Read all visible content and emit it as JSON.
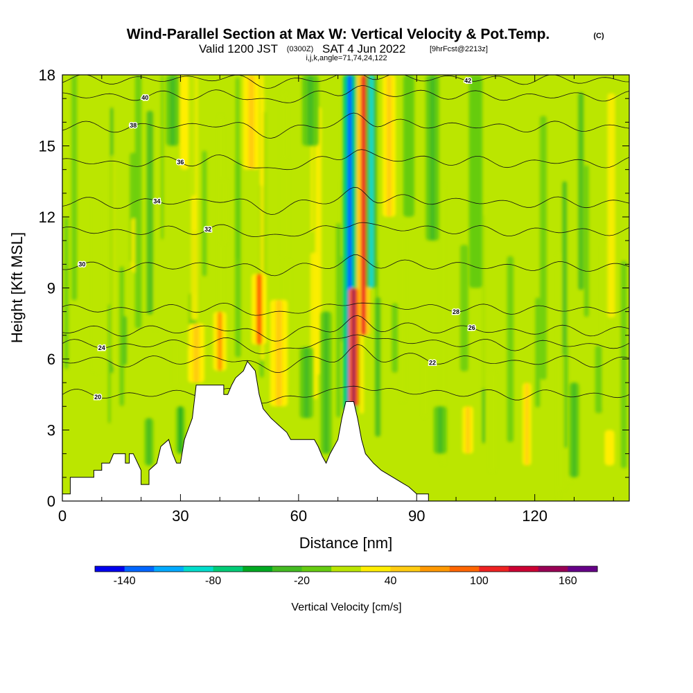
{
  "chart_data": {
    "type": "heatmap",
    "title": "Wind-Parallel Section at Max W: Vertical Velocity & Pot.Temp.",
    "title_mark": "(C)",
    "subtitle_main": "Valid 1200 JST",
    "subtitle_utc": "(0300Z)",
    "subtitle_date": "SAT 4 Jun 2022",
    "subtitle_fcst": "[9hrFcst@2213z]",
    "subtitle_indices": "i,j,k,angle=71,74,24,122",
    "xlabel": "Distance [nm]",
    "ylabel": "Height [Kft MSL]",
    "xlim": [
      0,
      144
    ],
    "ylim": [
      0,
      18
    ],
    "x_ticks": [
      {
        "value": 0,
        "label": "0"
      },
      {
        "value": 30,
        "label": "30"
      },
      {
        "value": 60,
        "label": "60"
      },
      {
        "value": 90,
        "label": "90"
      },
      {
        "value": 120,
        "label": "120"
      }
    ],
    "y_ticks": [
      {
        "value": 0,
        "label": "0"
      },
      {
        "value": 3,
        "label": "3"
      },
      {
        "value": 6,
        "label": "6"
      },
      {
        "value": 9,
        "label": "9"
      },
      {
        "value": 12,
        "label": "12"
      },
      {
        "value": 15,
        "label": "15"
      },
      {
        "value": 18,
        "label": "18"
      }
    ],
    "colorbar": {
      "label": "Vertical Velocity [cm/s]",
      "min": -160,
      "max": 180,
      "step": 20,
      "tick_labels": [
        {
          "value": -140,
          "label": "-140"
        },
        {
          "value": -80,
          "label": "-80"
        },
        {
          "value": -20,
          "label": "-20"
        },
        {
          "value": 40,
          "label": "40"
        },
        {
          "value": 100,
          "label": "100"
        },
        {
          "value": 160,
          "label": "160"
        }
      ],
      "colors": [
        "#0000ee",
        "#0066ff",
        "#00aaff",
        "#00ddcc",
        "#00cc77",
        "#00aa22",
        "#44bb22",
        "#66cc11",
        "#bbe600",
        "#ffee00",
        "#ffcc11",
        "#ff9900",
        "#ff6600",
        "#ee2222",
        "#cc0033",
        "#990055",
        "#660088"
      ]
    },
    "background_value": 0,
    "vertical_velocity_features": [
      {
        "x": 73,
        "width": 1.2,
        "y_bottom": 3.8,
        "y_top": 18,
        "value": -140
      },
      {
        "x": 76.5,
        "width": 1.2,
        "y_bottom": 7.0,
        "y_top": 18,
        "value": 110
      },
      {
        "x": 78.5,
        "width": 1.0,
        "y_bottom": 9.0,
        "y_top": 18,
        "value": -100
      },
      {
        "x": 74,
        "width": 0.9,
        "y_bottom": 4.0,
        "y_top": 9.0,
        "value": 150
      },
      {
        "x": 50,
        "width": 1.4,
        "y_bottom": 6.6,
        "y_top": 9.6,
        "value": 90
      },
      {
        "x": 40,
        "width": 1.2,
        "y_bottom": 5.5,
        "y_top": 8.0,
        "value": 70
      },
      {
        "x": 34,
        "width": 1.5,
        "y_bottom": 5.0,
        "y_top": 7.5,
        "value": 50
      },
      {
        "x": 55,
        "width": 1.6,
        "y_bottom": 4.0,
        "y_top": 8.5,
        "value": 40
      },
      {
        "x": 67,
        "width": 1.0,
        "y_bottom": 2.0,
        "y_top": 8.0,
        "value": -30
      },
      {
        "x": 62,
        "width": 1.2,
        "y_bottom": 3.5,
        "y_top": 6.5,
        "value": -40
      },
      {
        "x": 30,
        "width": 0.8,
        "y_bottom": 2.0,
        "y_top": 4.0,
        "value": -60
      },
      {
        "x": 31,
        "width": 0.8,
        "y_bottom": 14.0,
        "y_top": 18,
        "value": 30
      },
      {
        "x": 28,
        "width": 1.2,
        "y_bottom": 15.0,
        "y_top": 18,
        "value": -30
      },
      {
        "x": 48,
        "width": 1.5,
        "y_bottom": 14.0,
        "y_top": 18,
        "value": 40
      },
      {
        "x": 63,
        "width": 1.5,
        "y_bottom": 15.0,
        "y_top": 18,
        "value": -40
      },
      {
        "x": 83,
        "width": 1.2,
        "y_bottom": 12.0,
        "y_top": 18,
        "value": 40
      },
      {
        "x": 88,
        "width": 1.0,
        "y_bottom": 12.0,
        "y_top": 18,
        "value": -20
      },
      {
        "x": 94,
        "width": 1.2,
        "y_bottom": 11.0,
        "y_top": 18,
        "value": -30
      },
      {
        "x": 105,
        "width": 1.2,
        "y_bottom": 9.0,
        "y_top": 18,
        "value": -20
      },
      {
        "x": 118,
        "width": 0.8,
        "y_bottom": 1.5,
        "y_top": 5.0,
        "value": 40
      },
      {
        "x": 130,
        "width": 0.9,
        "y_bottom": 1.0,
        "y_top": 5.0,
        "value": -40
      },
      {
        "x": 103,
        "width": 1.0,
        "y_bottom": 2.0,
        "y_top": 4.0,
        "value": 40
      },
      {
        "x": 96,
        "width": 1.2,
        "y_bottom": 2.0,
        "y_top": 4.0,
        "value": -30
      },
      {
        "x": 22,
        "width": 0.8,
        "y_bottom": 1.5,
        "y_top": 3.5,
        "value": -30
      },
      {
        "x": 139,
        "width": 0.9,
        "y_bottom": 1.5,
        "y_top": 3.0,
        "value": 30
      }
    ],
    "terrain": [
      [
        0,
        0.3
      ],
      [
        2,
        0.3
      ],
      [
        2,
        1.0
      ],
      [
        8,
        1.0
      ],
      [
        8,
        1.3
      ],
      [
        10,
        1.3
      ],
      [
        10,
        1.6
      ],
      [
        12,
        1.6
      ],
      [
        13,
        2.0
      ],
      [
        16,
        2.0
      ],
      [
        16,
        1.6
      ],
      [
        17,
        1.6
      ],
      [
        17,
        2.0
      ],
      [
        18,
        2.0
      ],
      [
        20,
        1.3
      ],
      [
        20,
        0.7
      ],
      [
        22,
        0.7
      ],
      [
        22,
        1.3
      ],
      [
        24,
        1.6
      ],
      [
        25,
        2.3
      ],
      [
        27,
        2.6
      ],
      [
        28,
        2.0
      ],
      [
        29,
        1.6
      ],
      [
        30,
        1.6
      ],
      [
        31,
        2.6
      ],
      [
        33,
        3.5
      ],
      [
        34,
        4.9
      ],
      [
        41,
        4.9
      ],
      [
        41,
        4.5
      ],
      [
        42,
        4.5
      ],
      [
        43,
        4.9
      ],
      [
        44,
        5.2
      ],
      [
        46,
        5.5
      ],
      [
        47,
        5.9
      ],
      [
        49,
        5.5
      ],
      [
        50,
        4.5
      ],
      [
        51,
        3.9
      ],
      [
        53,
        3.5
      ],
      [
        55,
        3.2
      ],
      [
        57,
        2.9
      ],
      [
        58,
        2.6
      ],
      [
        64,
        2.6
      ],
      [
        65,
        2.3
      ],
      [
        66,
        1.9
      ],
      [
        67,
        1.6
      ],
      [
        68,
        2.0
      ],
      [
        70,
        2.6
      ],
      [
        71,
        3.5
      ],
      [
        72,
        4.2
      ],
      [
        74,
        4.2
      ],
      [
        75,
        3.5
      ],
      [
        76,
        2.6
      ],
      [
        77,
        2.0
      ],
      [
        79,
        1.6
      ],
      [
        81,
        1.3
      ],
      [
        84,
        1.0
      ],
      [
        86,
        0.8
      ],
      [
        88,
        0.6
      ],
      [
        90,
        0.3
      ],
      [
        93,
        0.3
      ],
      [
        93,
        0.0
      ],
      [
        144,
        0.0
      ]
    ],
    "theta_contours": [
      {
        "value": 20,
        "base": 4.5,
        "label_x": 9
      },
      {
        "value": 22,
        "base": 5.9,
        "label_x": 94
      },
      {
        "value": 24,
        "base": 6.6,
        "label_x": 10
      },
      {
        "value": 26,
        "base": 7.2,
        "label_x": 104
      },
      {
        "value": 28,
        "base": 8.1,
        "label_x": 100
      },
      {
        "value": 30,
        "base": 9.9,
        "label_x": 5
      },
      {
        "value": 32,
        "base": 11.4,
        "label_x": 37
      },
      {
        "value": 34,
        "base": 12.6,
        "label_x": 24
      },
      {
        "value": 36,
        "base": 14.3,
        "label_x": 30
      },
      {
        "value": 38,
        "base": 15.8,
        "label_x": 18
      },
      {
        "value": 40,
        "base": 17.1,
        "label_x": 21
      },
      {
        "value": 42,
        "base": 17.8,
        "label_x": 103
      }
    ]
  }
}
